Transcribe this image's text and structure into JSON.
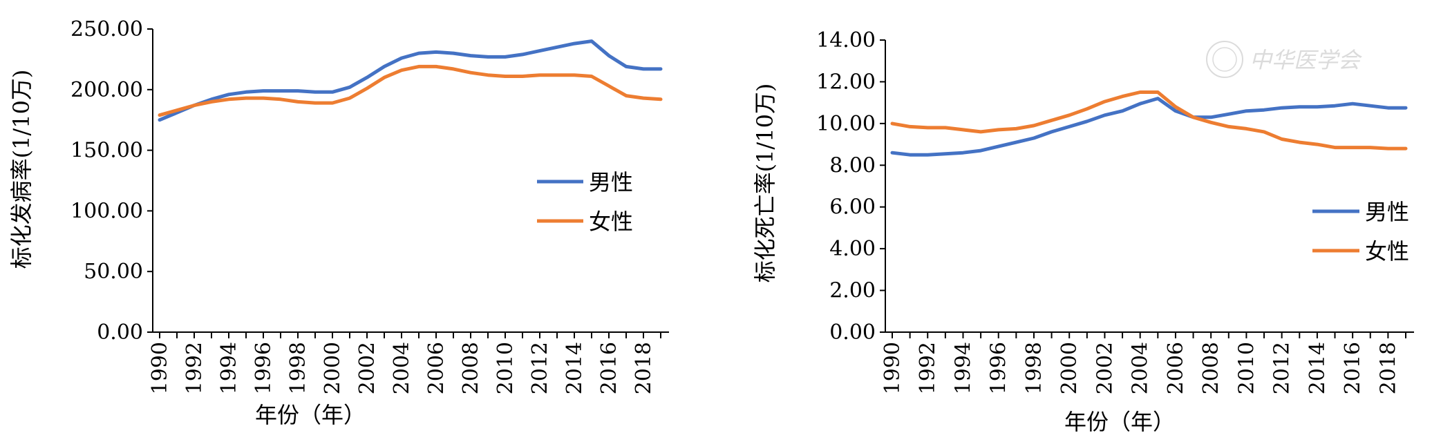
{
  "chart_data": [
    {
      "type": "line",
      "title": "",
      "xlabel": "年份（年）",
      "ylabel": "标化发病率(1/10万)",
      "ylim": [
        0,
        250
      ],
      "y_ticks": [
        0,
        50,
        100,
        150,
        200,
        250
      ],
      "y_tick_labels": [
        "0.00",
        "50.00",
        "100.00",
        "150.00",
        "200.00",
        "250.00"
      ],
      "xlim": [
        1990,
        2019
      ],
      "x_tick_labels": [
        "1990",
        "1992",
        "1994",
        "1996",
        "1998",
        "2000",
        "2002",
        "2004",
        "2006",
        "2008",
        "2010",
        "2012",
        "2014",
        "2016",
        "2018"
      ],
      "x": [
        1990,
        1991,
        1992,
        1993,
        1994,
        1995,
        1996,
        1997,
        1998,
        1999,
        2000,
        2001,
        2002,
        2003,
        2004,
        2005,
        2006,
        2007,
        2008,
        2009,
        2010,
        2011,
        2012,
        2013,
        2014,
        2015,
        2016,
        2017,
        2018,
        2019
      ],
      "grid": false,
      "legend_position": "right-middle",
      "series": [
        {
          "name": "男性",
          "color": "#4472C4",
          "values": [
            175,
            181,
            187,
            192,
            196,
            198,
            199,
            199,
            199,
            198,
            198,
            202,
            210,
            219,
            226,
            230,
            231,
            230,
            228,
            227,
            227,
            229,
            232,
            235,
            238,
            240,
            228,
            219,
            217,
            217
          ]
        },
        {
          "name": "女性",
          "color": "#ED7D31",
          "values": [
            179,
            183,
            187,
            190,
            192,
            193,
            193,
            192,
            190,
            189,
            189,
            193,
            201,
            210,
            216,
            219,
            219,
            217,
            214,
            212,
            211,
            211,
            212,
            212,
            212,
            211,
            203,
            195,
            193,
            192
          ]
        }
      ]
    },
    {
      "type": "line",
      "title": "",
      "xlabel": "年份（年）",
      "ylabel": "标化死亡率(1/10万)",
      "ylim": [
        0,
        14
      ],
      "y_ticks": [
        0,
        2,
        4,
        6,
        8,
        10,
        12,
        14
      ],
      "y_tick_labels": [
        "0.00",
        "2.00",
        "4.00",
        "6.00",
        "8.00",
        "10.00",
        "12.00",
        "14.00"
      ],
      "xlim": [
        1990,
        2019
      ],
      "x_tick_labels": [
        "1990",
        "1992",
        "1994",
        "1996",
        "1998",
        "2000",
        "2002",
        "2004",
        "2006",
        "2008",
        "2010",
        "2012",
        "2014",
        "2016",
        "2018"
      ],
      "x": [
        1990,
        1991,
        1992,
        1993,
        1994,
        1995,
        1996,
        1997,
        1998,
        1999,
        2000,
        2001,
        2002,
        2003,
        2004,
        2005,
        2006,
        2007,
        2008,
        2009,
        2010,
        2011,
        2012,
        2013,
        2014,
        2015,
        2016,
        2017,
        2018,
        2019
      ],
      "grid": false,
      "legend_position": "bottom-right",
      "series": [
        {
          "name": "男性",
          "color": "#4472C4",
          "values": [
            8.6,
            8.5,
            8.5,
            8.55,
            8.6,
            8.7,
            8.9,
            9.1,
            9.3,
            9.6,
            9.85,
            10.1,
            10.4,
            10.6,
            10.95,
            11.2,
            10.6,
            10.3,
            10.3,
            10.45,
            10.6,
            10.65,
            10.75,
            10.8,
            10.8,
            10.85,
            10.95,
            10.85,
            10.75,
            10.75
          ]
        },
        {
          "name": "女性",
          "color": "#ED7D31",
          "values": [
            10.0,
            9.85,
            9.8,
            9.8,
            9.7,
            9.6,
            9.7,
            9.75,
            9.9,
            10.15,
            10.4,
            10.7,
            11.05,
            11.3,
            11.5,
            11.5,
            10.8,
            10.3,
            10.05,
            9.85,
            9.75,
            9.6,
            9.25,
            9.1,
            9.0,
            8.85,
            8.85,
            8.85,
            8.8,
            8.8
          ]
        }
      ]
    }
  ],
  "watermark": {
    "text": "中华医学会"
  }
}
